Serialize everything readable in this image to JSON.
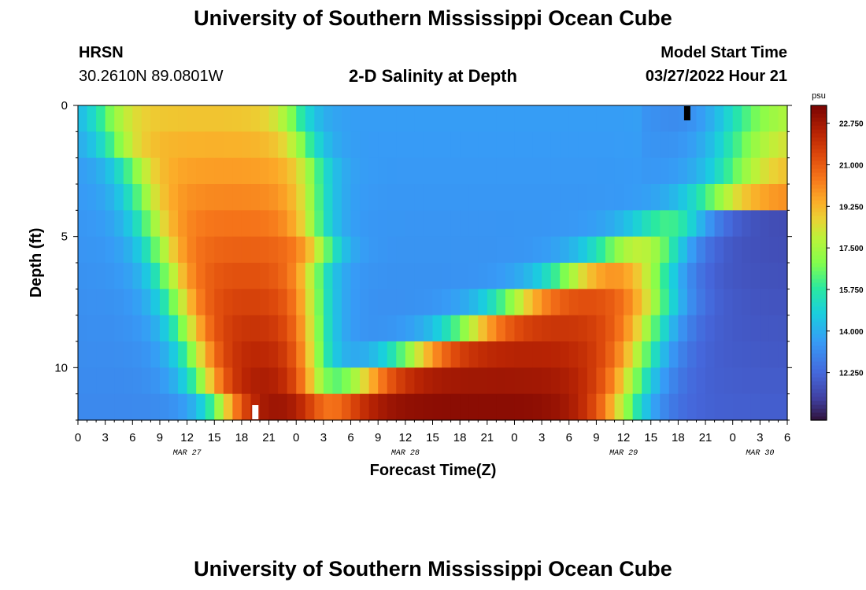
{
  "header": {
    "title": "University of Southern Mississippi Ocean Cube",
    "station": "HRSN",
    "coords": "30.2610N  89.0801W",
    "subtitle": "2-D Salinity at Depth",
    "model_start_label": "Model Start Time",
    "model_start_value": "03/27/2022 Hour 21"
  },
  "footer": {
    "title": "University of Southern Mississippi Ocean Cube"
  },
  "chart_data": {
    "type": "heatmap",
    "title": "2-D Salinity at Depth",
    "xlabel": "Forecast Time(Z)",
    "ylabel": "Depth (ft)",
    "x_hours_range": [
      0,
      78
    ],
    "x_tick_hours": [
      0,
      3,
      6,
      9,
      12,
      15,
      18,
      21,
      24,
      27,
      30,
      33,
      36,
      39,
      42,
      45,
      48,
      51,
      54,
      57,
      60,
      63,
      66,
      69,
      72,
      75,
      78
    ],
    "x_tick_labels": [
      "0",
      "3",
      "6",
      "9",
      "12",
      "15",
      "18",
      "21",
      "0",
      "3",
      "6",
      "9",
      "12",
      "15",
      "18",
      "21",
      "0",
      "3",
      "6",
      "9",
      "12",
      "15",
      "18",
      "21",
      "0",
      "3",
      "6"
    ],
    "date_labels": [
      {
        "hour": 12,
        "label": "MAR 27"
      },
      {
        "hour": 36,
        "label": "MAR 28"
      },
      {
        "hour": 60,
        "label": "MAR 29"
      },
      {
        "hour": 75,
        "label": "MAR 30"
      }
    ],
    "y_range_ft": [
      0,
      12
    ],
    "y_ticks": [
      0,
      5,
      10
    ],
    "colorbar": {
      "unit": "psu",
      "range": [
        10.25,
        23.5
      ],
      "tick_values": [
        22.75,
        21.0,
        19.25,
        17.5,
        15.75,
        14.0,
        12.25
      ],
      "tick_labels": [
        "22.750",
        "21.000",
        "19.250",
        "17.500",
        "15.750",
        "14.000",
        "12.250"
      ]
    },
    "depth_rows_ft": [
      0.5,
      1.5,
      2.5,
      3.5,
      4.5,
      5.5,
      6.5,
      7.5,
      8.5,
      9.5,
      10.5,
      11.5
    ],
    "fronts_hours": {
      "rise1": [
        3,
        4,
        6,
        7,
        8,
        9,
        10,
        11,
        12,
        13,
        14,
        16
      ],
      "fall1": [
        24,
        25,
        26,
        26,
        26,
        27,
        26,
        26,
        26,
        26,
        26,
        27
      ],
      "rise2": [
        72,
        72,
        72,
        70,
        64,
        59,
        54,
        48,
        43,
        37,
        31,
        27
      ],
      "fall2": [
        100,
        100,
        100,
        100,
        67,
        65,
        64,
        64,
        63,
        62,
        61,
        60
      ],
      "rise3": [
        100,
        100,
        100,
        100,
        100,
        100,
        100,
        100,
        100,
        100,
        100,
        100
      ]
    },
    "markers": [
      {
        "hour": 67,
        "depth_ft": 0.3,
        "color": "#000000"
      },
      {
        "hour": 19.5,
        "depth_ft": 11.7,
        "color": "#ffffff"
      }
    ]
  }
}
